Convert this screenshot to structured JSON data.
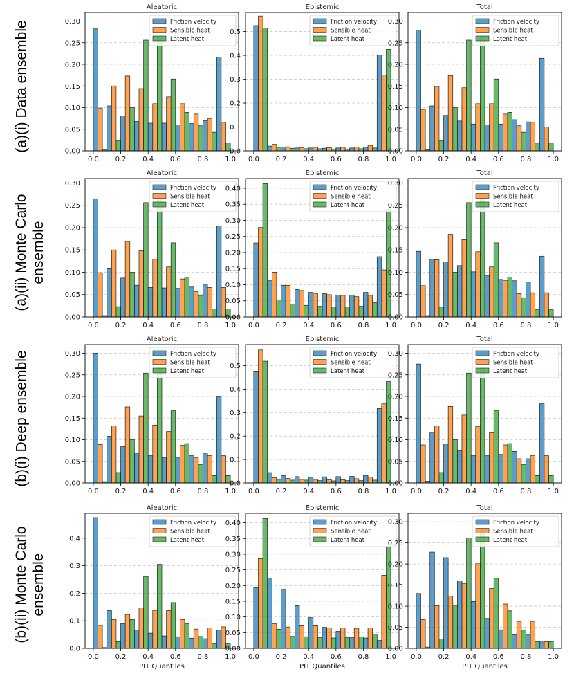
{
  "colors": {
    "friction": "#1f77b4",
    "sensible": "#ff7f0e",
    "latent": "#2ca02c",
    "edge": "#222222",
    "grid": "#c8c8c8"
  },
  "row_labels": [
    "(a)(i) Data ensemble",
    "(a)(ii) Monte Carlo\nensemble",
    "(b)(i) Deep ensemble",
    "(b)(ii) Monte Carlo\nensemble"
  ],
  "xlabel": "PIT Quantiles",
  "x_ticks": [
    "0.0",
    "0.2",
    "0.4",
    "0.6",
    "0.8",
    "1.0"
  ],
  "legend": [
    "Friction velocity",
    "Sensible heat",
    "Latent heat"
  ],
  "chart_data": [
    {
      "type": "bar",
      "title": "Aleatoric",
      "ylim": [
        0,
        0.32
      ],
      "yticks": [
        "0.00",
        "0.05",
        "0.10",
        "0.15",
        "0.20",
        "0.25",
        "0.30"
      ],
      "categories": [
        "0.05",
        "0.15",
        "0.25",
        "0.35",
        "0.45",
        "0.55",
        "0.65",
        "0.75",
        "0.85",
        "0.95"
      ],
      "series": [
        {
          "name": "Friction velocity",
          "values": [
            0.282,
            0.104,
            0.081,
            0.068,
            0.064,
            0.064,
            0.06,
            0.063,
            0.07,
            0.217
          ]
        },
        {
          "name": "Sensible heat",
          "values": [
            0.099,
            0.15,
            0.173,
            0.144,
            0.109,
            0.125,
            0.109,
            0.085,
            0.075,
            0.066
          ]
        },
        {
          "name": "Latent heat",
          "values": [
            0.003,
            0.023,
            0.1,
            0.256,
            0.265,
            0.166,
            0.089,
            0.058,
            0.043,
            0.018
          ]
        }
      ]
    },
    {
      "type": "bar",
      "title": "Epistemic",
      "ylim": [
        0,
        0.58
      ],
      "yticks": [
        "0.0",
        "0.1",
        "0.2",
        "0.3",
        "0.4",
        "0.5"
      ],
      "categories": [
        "0.05",
        "0.15",
        "0.25",
        "0.35",
        "0.45",
        "0.55",
        "0.65",
        "0.75",
        "0.85",
        "0.95"
      ],
      "series": [
        {
          "name": "Friction velocity",
          "values": [
            0.525,
            0.02,
            0.016,
            0.012,
            0.012,
            0.011,
            0.012,
            0.012,
            0.015,
            0.402
          ]
        },
        {
          "name": "Sensible heat",
          "values": [
            0.565,
            0.027,
            0.017,
            0.014,
            0.015,
            0.014,
            0.015,
            0.016,
            0.023,
            0.317
          ]
        },
        {
          "name": "Latent heat",
          "values": [
            0.515,
            0.015,
            0.011,
            0.009,
            0.009,
            0.008,
            0.008,
            0.009,
            0.012,
            0.425
          ]
        }
      ]
    },
    {
      "type": "bar",
      "title": "Total",
      "ylim": [
        0,
        0.32
      ],
      "yticks": [
        "0.00",
        "0.05",
        "0.10",
        "0.15",
        "0.20",
        "0.25",
        "0.30"
      ],
      "categories": [
        "0.05",
        "0.15",
        "0.25",
        "0.35",
        "0.45",
        "0.55",
        "0.65",
        "0.75",
        "0.85",
        "0.95"
      ],
      "series": [
        {
          "name": "Friction velocity",
          "values": [
            0.279,
            0.104,
            0.082,
            0.069,
            0.062,
            0.06,
            0.062,
            0.072,
            0.067,
            0.214
          ]
        },
        {
          "name": "Sensible heat",
          "values": [
            0.096,
            0.149,
            0.174,
            0.146,
            0.109,
            0.109,
            0.085,
            0.058,
            0.066,
            0.055
          ]
        },
        {
          "name": "Latent heat",
          "values": [
            0.003,
            0.023,
            0.1,
            0.256,
            0.265,
            0.166,
            0.089,
            0.043,
            0.018,
            0.018
          ]
        }
      ]
    },
    {
      "type": "bar",
      "title": "Aleatoric",
      "ylim": [
        0,
        0.31
      ],
      "yticks": [
        "0.00",
        "0.05",
        "0.10",
        "0.15",
        "0.20",
        "0.25",
        "0.30"
      ],
      "categories": [
        "0.05",
        "0.15",
        "0.25",
        "0.35",
        "0.45",
        "0.55",
        "0.65",
        "0.75",
        "0.85",
        "0.95"
      ],
      "series": [
        {
          "name": "Friction velocity",
          "values": [
            0.264,
            0.108,
            0.087,
            0.071,
            0.066,
            0.065,
            0.064,
            0.067,
            0.073,
            0.204
          ]
        },
        {
          "name": "Sensible heat",
          "values": [
            0.099,
            0.15,
            0.169,
            0.148,
            0.129,
            0.112,
            0.085,
            0.057,
            0.066,
            0.066
          ]
        },
        {
          "name": "Latent heat",
          "values": [
            0.003,
            0.023,
            0.1,
            0.256,
            0.265,
            0.166,
            0.089,
            0.047,
            0.018,
            0.018
          ]
        }
      ]
    },
    {
      "type": "bar",
      "title": "Epistemic",
      "ylim": [
        0,
        0.43
      ],
      "yticks": [
        "0.00",
        "0.05",
        "0.10",
        "0.15",
        "0.20",
        "0.25",
        "0.30",
        "0.35",
        "0.40"
      ],
      "categories": [
        "0.05",
        "0.15",
        "0.25",
        "0.35",
        "0.45",
        "0.55",
        "0.65",
        "0.75",
        "0.85",
        "0.95"
      ],
      "series": [
        {
          "name": "Friction velocity",
          "values": [
            0.23,
            0.114,
            0.098,
            0.085,
            0.076,
            0.072,
            0.068,
            0.068,
            0.076,
            0.187
          ]
        },
        {
          "name": "Sensible heat",
          "values": [
            0.278,
            0.139,
            0.098,
            0.082,
            0.073,
            0.069,
            0.067,
            0.063,
            0.067,
            0.146
          ]
        },
        {
          "name": "Latent heat",
          "values": [
            0.414,
            0.053,
            0.04,
            0.036,
            0.033,
            0.031,
            0.031,
            0.033,
            0.044,
            0.334
          ]
        }
      ]
    },
    {
      "type": "bar",
      "title": "Total",
      "ylim": [
        0,
        0.31
      ],
      "yticks": [
        "0.00",
        "0.05",
        "0.10",
        "0.15",
        "0.20",
        "0.25",
        "0.30"
      ],
      "categories": [
        "0.05",
        "0.15",
        "0.25",
        "0.35",
        "0.45",
        "0.55",
        "0.65",
        "0.75",
        "0.85",
        "0.95"
      ],
      "series": [
        {
          "name": "Friction velocity",
          "values": [
            0.147,
            0.129,
            0.123,
            0.115,
            0.101,
            0.092,
            0.084,
            0.081,
            0.078,
            0.136
          ]
        },
        {
          "name": "Sensible heat",
          "values": [
            0.07,
            0.128,
            0.185,
            0.173,
            0.146,
            0.112,
            0.082,
            0.052,
            0.054,
            0.054
          ]
        },
        {
          "name": "Latent heat",
          "values": [
            0.003,
            0.022,
            0.1,
            0.256,
            0.265,
            0.166,
            0.089,
            0.043,
            0.016,
            0.016
          ]
        }
      ]
    },
    {
      "type": "bar",
      "title": "Aleatoric",
      "ylim": [
        0,
        0.32
      ],
      "yticks": [
        "0.00",
        "0.05",
        "0.10",
        "0.15",
        "0.20",
        "0.25",
        "0.30"
      ],
      "categories": [
        "0.05",
        "0.15",
        "0.25",
        "0.35",
        "0.45",
        "0.55",
        "0.65",
        "0.75",
        "0.85",
        "0.95"
      ],
      "series": [
        {
          "name": "Friction velocity",
          "values": [
            0.3,
            0.108,
            0.084,
            0.069,
            0.063,
            0.059,
            0.058,
            0.063,
            0.069,
            0.199
          ]
        },
        {
          "name": "Sensible heat",
          "values": [
            0.089,
            0.132,
            0.176,
            0.155,
            0.134,
            0.119,
            0.087,
            0.059,
            0.063,
            0.063
          ]
        },
        {
          "name": "Latent heat",
          "values": [
            0.003,
            0.024,
            0.1,
            0.254,
            0.265,
            0.167,
            0.091,
            0.043,
            0.017,
            0.017
          ]
        }
      ]
    },
    {
      "type": "bar",
      "title": "Epistemic",
      "ylim": [
        0,
        0.59
      ],
      "yticks": [
        "0.0",
        "0.1",
        "0.2",
        "0.3",
        "0.4",
        "0.5"
      ],
      "categories": [
        "0.05",
        "0.15",
        "0.25",
        "0.35",
        "0.45",
        "0.55",
        "0.65",
        "0.75",
        "0.85",
        "0.95"
      ],
      "series": [
        {
          "name": "Friction velocity",
          "values": [
            0.477,
            0.044,
            0.031,
            0.027,
            0.024,
            0.026,
            0.027,
            0.028,
            0.032,
            0.318
          ]
        },
        {
          "name": "Sensible heat",
          "values": [
            0.567,
            0.022,
            0.019,
            0.015,
            0.015,
            0.014,
            0.014,
            0.018,
            0.025,
            0.337
          ]
        },
        {
          "name": "Latent heat",
          "values": [
            0.519,
            0.015,
            0.012,
            0.012,
            0.01,
            0.009,
            0.01,
            0.01,
            0.012,
            0.432
          ]
        }
      ]
    },
    {
      "type": "bar",
      "title": "Total",
      "ylim": [
        0,
        0.32
      ],
      "yticks": [
        "0.00",
        "0.05",
        "0.10",
        "0.15",
        "0.20",
        "0.25",
        "0.30"
      ],
      "categories": [
        "0.05",
        "0.15",
        "0.25",
        "0.35",
        "0.45",
        "0.55",
        "0.65",
        "0.75",
        "0.85",
        "0.95"
      ],
      "series": [
        {
          "name": "Friction velocity",
          "values": [
            0.275,
            0.117,
            0.09,
            0.075,
            0.063,
            0.064,
            0.066,
            0.073,
            0.056,
            0.183
          ]
        },
        {
          "name": "Sensible heat",
          "values": [
            0.088,
            0.132,
            0.177,
            0.157,
            0.131,
            0.116,
            0.088,
            0.056,
            0.063,
            0.063
          ]
        },
        {
          "name": "Latent heat",
          "values": [
            0.004,
            0.024,
            0.1,
            0.254,
            0.265,
            0.167,
            0.091,
            0.043,
            0.017,
            0.017
          ]
        }
      ]
    },
    {
      "type": "bar",
      "title": "Aleatoric",
      "ylim": [
        0,
        0.49
      ],
      "yticks": [
        "0.0",
        "0.1",
        "0.2",
        "0.3",
        "0.4"
      ],
      "categories": [
        "0.05",
        "0.15",
        "0.25",
        "0.35",
        "0.45",
        "0.55",
        "0.65",
        "0.75",
        "0.85",
        "0.95"
      ],
      "series": [
        {
          "name": "Friction velocity",
          "values": [
            0.475,
            0.137,
            0.09,
            0.066,
            0.055,
            0.045,
            0.042,
            0.037,
            0.035,
            0.066
          ]
        },
        {
          "name": "Sensible heat",
          "values": [
            0.083,
            0.105,
            0.123,
            0.147,
            0.138,
            0.137,
            0.105,
            0.07,
            0.074,
            0.078
          ]
        },
        {
          "name": "Latent heat",
          "values": [
            0.003,
            0.024,
            0.105,
            0.261,
            0.305,
            0.166,
            0.089,
            0.043,
            0.016,
            0.016
          ]
        }
      ]
    },
    {
      "type": "bar",
      "title": "Epistemic",
      "ylim": [
        0,
        0.43
      ],
      "yticks": [
        "0.00",
        "0.05",
        "0.10",
        "0.15",
        "0.20",
        "0.25",
        "0.30",
        "0.35",
        "0.40"
      ],
      "categories": [
        "0.05",
        "0.15",
        "0.25",
        "0.35",
        "0.45",
        "0.55",
        "0.65",
        "0.75",
        "0.85",
        "0.95"
      ],
      "series": [
        {
          "name": "Friction velocity",
          "values": [
            0.193,
            0.224,
            0.188,
            0.136,
            0.098,
            0.067,
            0.054,
            0.034,
            0.033,
            0.025
          ]
        },
        {
          "name": "Sensible heat",
          "values": [
            0.286,
            0.078,
            0.068,
            0.072,
            0.072,
            0.065,
            0.065,
            0.064,
            0.065,
            0.233
          ]
        },
        {
          "name": "Latent heat",
          "values": [
            0.414,
            0.061,
            0.038,
            0.037,
            0.034,
            0.033,
            0.034,
            0.036,
            0.045,
            0.325
          ]
        }
      ]
    },
    {
      "type": "bar",
      "title": "Total",
      "ylim": [
        0,
        0.32
      ],
      "yticks": [
        "0.00",
        "0.05",
        "0.10",
        "0.15",
        "0.20",
        "0.25",
        "0.30"
      ],
      "categories": [
        "0.05",
        "0.15",
        "0.25",
        "0.35",
        "0.45",
        "0.55",
        "0.65",
        "0.75",
        "0.85",
        "0.95"
      ],
      "series": [
        {
          "name": "Friction velocity",
          "values": [
            0.13,
            0.228,
            0.215,
            0.16,
            0.111,
            0.071,
            0.044,
            0.032,
            0.033,
            0.015
          ]
        },
        {
          "name": "Sensible heat",
          "values": [
            0.068,
            0.101,
            0.124,
            0.154,
            0.202,
            0.142,
            0.105,
            0.064,
            0.064,
            0.016
          ]
        },
        {
          "name": "Latent heat",
          "values": [
            0.003,
            0.022,
            0.102,
            0.262,
            0.28,
            0.166,
            0.089,
            0.043,
            0.016,
            0.016
          ]
        }
      ]
    }
  ]
}
